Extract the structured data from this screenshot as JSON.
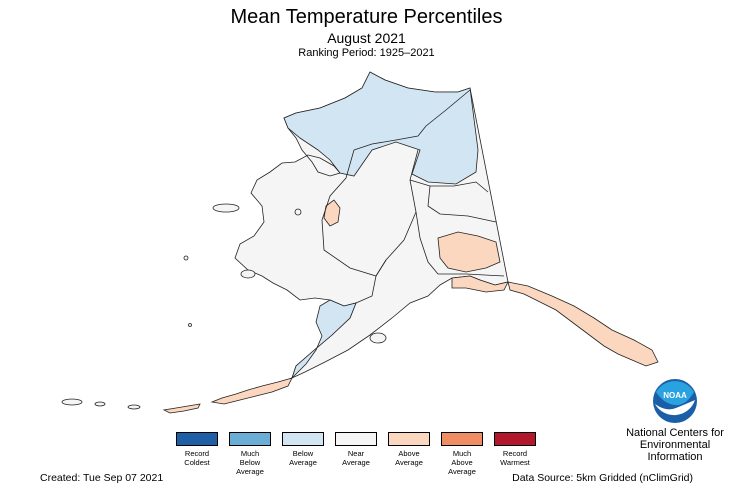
{
  "title": "Mean Temperature Percentiles",
  "subtitle": "August 2021",
  "ranking_period": "Ranking Period: 1925–2021",
  "legend": [
    {
      "label": "Record\nColdest",
      "color": "#1f5fa6"
    },
    {
      "label": "Much\nBelow\nAverage",
      "color": "#6aaed6"
    },
    {
      "label": "Below\nAverage",
      "color": "#d2e5f2"
    },
    {
      "label": "Near\nAverage",
      "color": "#f5f5f5"
    },
    {
      "label": "Above\nAverage",
      "color": "#fbd7c0"
    },
    {
      "label": "Much\nAbove\nAverage",
      "color": "#f08d62"
    },
    {
      "label": "Record\nWarmest",
      "color": "#b2182b"
    }
  ],
  "created": "Created: Tue Sep 07 2021",
  "data_source": "Data Source: 5km Gridded (nClimGrid)",
  "agency": "National Centers for\nEnvironmental\nInformation",
  "logo_text": "NOAA",
  "colors": {
    "near": "#f5f5f5",
    "below": "#d2e5f2",
    "above": "#fbd7c0",
    "outline": "#222222",
    "noaa_blue": "#1a5ea8",
    "noaa_sky": "#2aa2e0"
  }
}
